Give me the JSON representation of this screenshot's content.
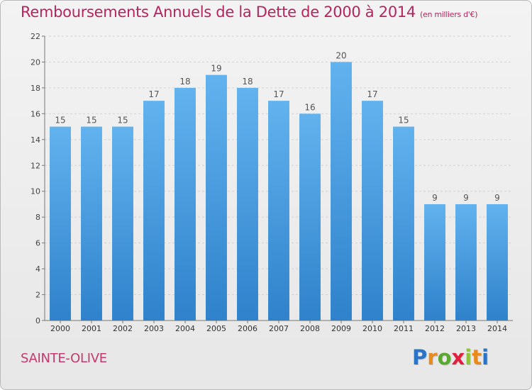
{
  "page": {
    "title": "Remboursements Annuels de la Dette de 2000 à 2014",
    "subtitle": "(en milliers d'€)",
    "commune": "SAINTE-OLIVE",
    "brand_letters": [
      "P",
      "r",
      "o",
      "x",
      "i",
      "t",
      "i"
    ],
    "brand_colors": [
      "#2a74c8",
      "#e98a1c",
      "#5aa830",
      "#e0203c",
      "#8fc43a",
      "#e98a1c",
      "#2a74c8"
    ]
  },
  "chart_data": {
    "type": "bar",
    "title": "Remboursements Annuels de la Dette de 2000 à 2014",
    "subtitle": "(en milliers d'€)",
    "categories": [
      "2000",
      "2001",
      "2002",
      "2003",
      "2004",
      "2005",
      "2006",
      "2007",
      "2008",
      "2009",
      "2010",
      "2011",
      "2012",
      "2013",
      "2014"
    ],
    "values": [
      15,
      15,
      15,
      17,
      18,
      19,
      18,
      17,
      16,
      20,
      17,
      15,
      9,
      9,
      9
    ],
    "data_labels": [
      "15",
      "15",
      "15",
      "17",
      "18",
      "19",
      "18",
      "17",
      "16",
      "20",
      "17",
      "15",
      "9",
      "9",
      "9"
    ],
    "ylim": [
      0,
      22
    ],
    "yticks": [
      0,
      2,
      4,
      6,
      8,
      10,
      12,
      14,
      16,
      18,
      20,
      22
    ],
    "ytick_labels": [
      "0",
      "2",
      "4",
      "6",
      "8",
      "10",
      "12",
      "14",
      "16",
      "18",
      "20",
      "22"
    ],
    "grid": true,
    "bar_color_top": "#62b2ee",
    "bar_color_bottom": "#2f82cb"
  }
}
